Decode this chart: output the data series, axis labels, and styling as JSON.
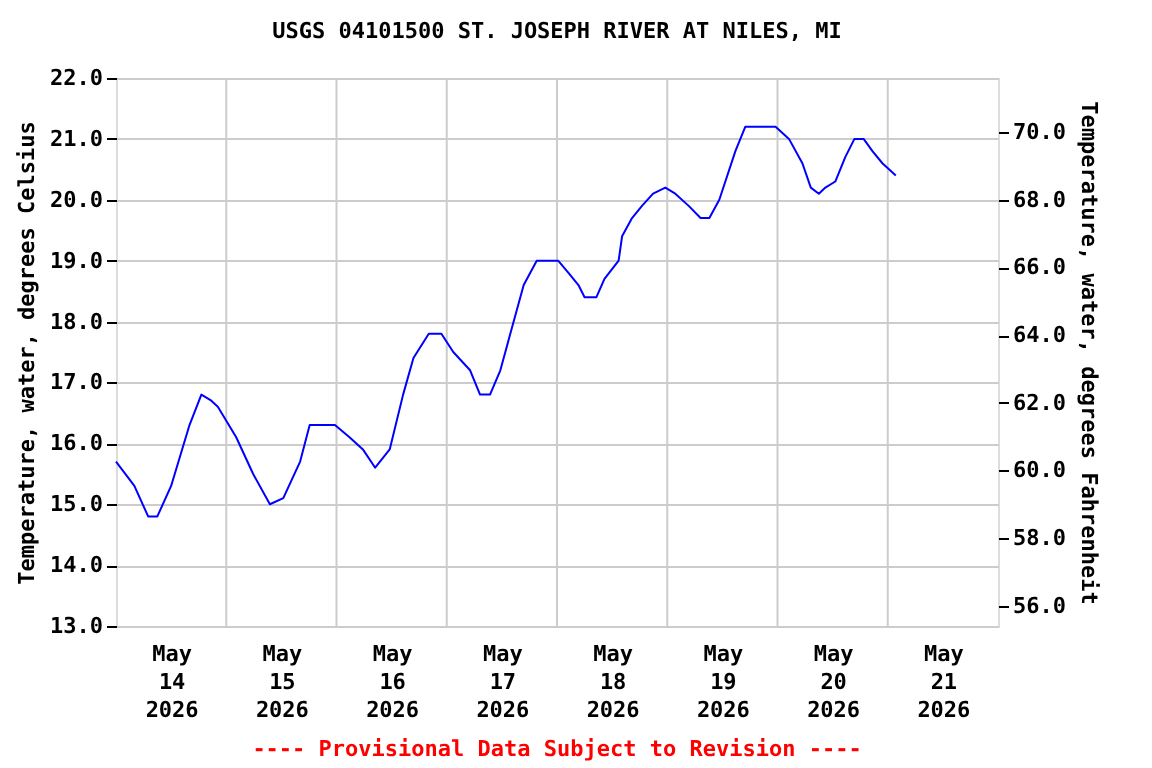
{
  "chart_data": {
    "type": "line",
    "title": "USGS 04101500 ST. JOSEPH RIVER AT NILES, MI",
    "ylabel": "Temperature, water, degrees Celsius",
    "y2label": "Temperature, water, degrees Fahrenheit",
    "annotations": [
      "---- Provisional Data Subject to Revision ----"
    ],
    "x": [
      "2026-05-14T00:00",
      "2026-05-14T04:00",
      "2026-05-14T07:00",
      "2026-05-14T09:00",
      "2026-05-14T12:00",
      "2026-05-14T16:00",
      "2026-05-14T18:35",
      "2026-05-14T20:45",
      "2026-05-14T22:10",
      "2026-05-15T02:10",
      "2026-05-15T05:50",
      "2026-05-15T09:30",
      "2026-05-15T12:25",
      "2026-05-15T16:05",
      "2026-05-15T18:10",
      "2026-05-15T23:40",
      "2026-05-16T02:50",
      "2026-05-16T05:45",
      "2026-05-16T08:25",
      "2026-05-16T11:35",
      "2026-05-16T14:30",
      "2026-05-16T16:45",
      "2026-05-16T20:05",
      "2026-05-16T22:50",
      "2026-05-17T01:25",
      "2026-05-17T05:05",
      "2026-05-17T07:15",
      "2026-05-17T09:25",
      "2026-05-17T11:40",
      "2026-05-17T13:50",
      "2026-05-17T16:45",
      "2026-05-17T19:35",
      "2026-05-18T00:15",
      "2026-05-18T02:30",
      "2026-05-18T04:40",
      "2026-05-18T06:00",
      "2026-05-18T08:35",
      "2026-05-18T10:20",
      "2026-05-18T13:25",
      "2026-05-18T14:10",
      "2026-05-18T16:20",
      "2026-05-18T18:30",
      "2026-05-18T20:55",
      "2026-05-18T23:35",
      "2026-05-19T01:45",
      "2026-05-19T04:40",
      "2026-05-19T07:15",
      "2026-05-19T09:10",
      "2026-05-19T11:20",
      "2026-05-19T14:50",
      "2026-05-19T17:00",
      "2026-05-19T23:35",
      "2026-05-20T02:30",
      "2026-05-20T05:25",
      "2026-05-20T07:15",
      "2026-05-20T09:00",
      "2026-05-20T10:25",
      "2026-05-20T12:35",
      "2026-05-20T14:45",
      "2026-05-20T16:45",
      "2026-05-20T18:45",
      "2026-05-20T20:40",
      "2026-05-20T22:50",
      "2026-05-21T01:45"
    ],
    "series": [
      {
        "color": "#0000ff",
        "values": [
          15.7,
          15.3,
          14.8,
          14.8,
          15.3,
          16.3,
          16.8,
          16.7,
          16.6,
          16.1,
          15.5,
          15.0,
          15.1,
          15.7,
          16.3,
          16.3,
          16.1,
          15.9,
          15.6,
          15.9,
          16.8,
          17.4,
          17.8,
          17.8,
          17.5,
          17.2,
          16.8,
          16.8,
          17.2,
          17.8,
          18.6,
          19.0,
          19.0,
          18.8,
          18.6,
          18.4,
          18.4,
          18.7,
          19.0,
          19.4,
          19.7,
          19.9,
          20.1,
          20.2,
          20.1,
          19.9,
          19.7,
          19.7,
          20.0,
          20.8,
          21.2,
          21.2,
          21.0,
          20.6,
          20.2,
          20.1,
          20.2,
          20.3,
          20.7,
          21.0,
          21.0,
          20.8,
          20.6,
          20.4
        ]
      }
    ],
    "xlim": [
      "2026-05-14",
      "2026-05-22"
    ],
    "xticks": [
      {
        "value": "2026-05-14T12:00",
        "label": "May\n14\n2026"
      },
      {
        "value": "2026-05-15T12:00",
        "label": "May\n15\n2026"
      },
      {
        "value": "2026-05-16T12:00",
        "label": "May\n16\n2026"
      },
      {
        "value": "2026-05-17T12:00",
        "label": "May\n17\n2026"
      },
      {
        "value": "2026-05-18T12:00",
        "label": "May\n18\n2026"
      },
      {
        "value": "2026-05-19T12:00",
        "label": "May\n19\n2026"
      },
      {
        "value": "2026-05-20T12:00",
        "label": "May\n20\n2026"
      },
      {
        "value": "2026-05-21T12:00",
        "label": "May\n21\n2026"
      },
      {
        "value": "2026-05-15",
        "label": null
      },
      {
        "value": "2026-05-16",
        "label": null
      },
      {
        "value": "2026-05-17",
        "label": null
      },
      {
        "value": "2026-05-18",
        "label": null
      },
      {
        "value": "2026-05-19",
        "label": null
      },
      {
        "value": "2026-05-20",
        "label": null
      },
      {
        "value": "2026-05-21",
        "label": null
      }
    ],
    "ylim": [
      13,
      22
    ],
    "yticks": [
      {
        "value": 13,
        "label": "13.0"
      },
      {
        "value": 14,
        "label": "14.0"
      },
      {
        "value": 15,
        "label": "15.0"
      },
      {
        "value": 16,
        "label": "16.0"
      },
      {
        "value": 17,
        "label": "17.0"
      },
      {
        "value": 18,
        "label": "18.0"
      },
      {
        "value": 19,
        "label": "19.0"
      },
      {
        "value": 20,
        "label": "20.0"
      },
      {
        "value": 21,
        "label": "21.0"
      },
      {
        "value": 22,
        "label": "22.0"
      }
    ],
    "y2lim": [
      55.4,
      71.6
    ],
    "y2ticks": [
      {
        "value": 56,
        "label": "56.0"
      },
      {
        "value": 58,
        "label": "58.0"
      },
      {
        "value": 60,
        "label": "60.0"
      },
      {
        "value": 62,
        "label": "62.0"
      },
      {
        "value": 64,
        "label": "64.0"
      },
      {
        "value": 66,
        "label": "66.0"
      },
      {
        "value": 68,
        "label": "68.0"
      },
      {
        "value": 70,
        "label": "70.0"
      }
    ],
    "grid": true,
    "line_style": "solid",
    "marker": "none"
  }
}
